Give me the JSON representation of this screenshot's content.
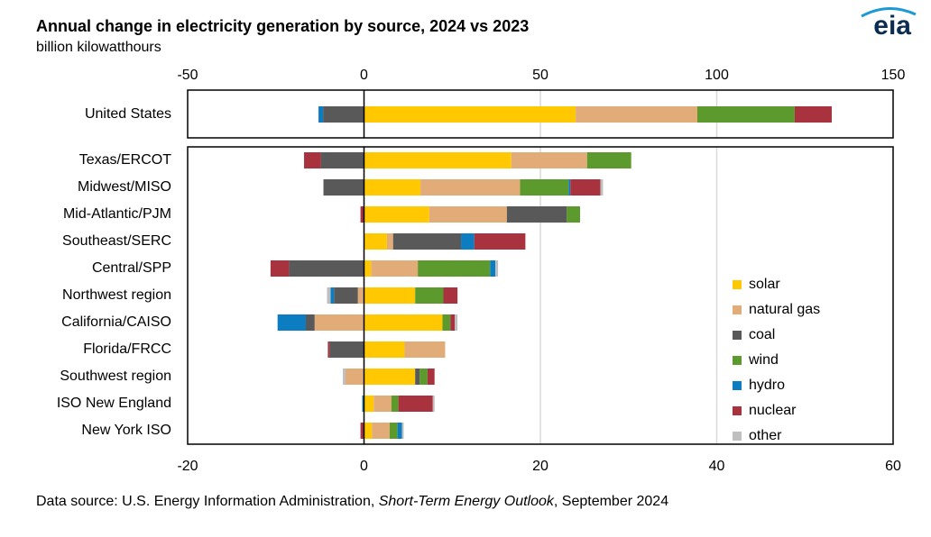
{
  "title": "Annual change in electricity generation by source, 2024 vs 2023",
  "subtitle": "billion kilowatthours",
  "logo": "eia",
  "source": [
    "Data source: U.S. Energy Information Administration, ",
    "Short-Term Energy Outlook",
    ", September 2024"
  ],
  "chart_data": [
    {
      "type": "stacked-barh",
      "categories": [
        "United States"
      ],
      "xlim": [
        -50,
        150
      ],
      "xticks": [
        -50,
        0,
        50,
        100,
        150
      ],
      "grid": true,
      "series": [
        {
          "name": "solar",
          "color": "#ffc800",
          "values": [
            60
          ]
        },
        {
          "name": "natural gas",
          "color": "#e2ac78",
          "values": [
            34.5
          ]
        },
        {
          "name": "coal",
          "color": "#595959",
          "values": [
            -11.6
          ]
        },
        {
          "name": "wind",
          "color": "#5c9a2e",
          "values": [
            27.6
          ]
        },
        {
          "name": "hydro",
          "color": "#0c7dc0",
          "values": [
            -1.3
          ]
        },
        {
          "name": "nuclear",
          "color": "#a8323e",
          "values": [
            10.5
          ]
        },
        {
          "name": "other",
          "color": "#bfbfbf",
          "values": [
            null
          ]
        }
      ]
    },
    {
      "type": "stacked-barh",
      "categories": [
        "Texas/ERCOT",
        "Midwest/MISO",
        "Mid-Atlantic/PJM",
        "Southeast/SERC",
        "Central/SPP",
        "Northwest region",
        "California/CAISO",
        "Florida/FRCC",
        "Southwest region",
        "ISO New England",
        "New York ISO"
      ],
      "xlim": [
        -20,
        60
      ],
      "xticks": [
        -20,
        0,
        20,
        40,
        60
      ],
      "grid": true,
      "legend": "right",
      "series": [
        {
          "name": "solar",
          "color": "#ffc800",
          "values": [
            16.7,
            6.4,
            7.4,
            2.6,
            0.8,
            5.8,
            8.9,
            4.6,
            5.8,
            1.1,
            0.9
          ]
        },
        {
          "name": "natural gas",
          "color": "#e2ac78",
          "values": [
            8.6,
            11.3,
            8.8,
            0.7,
            5.3,
            -0.7,
            -5.6,
            4.6,
            -2.1,
            2.0,
            2.0
          ]
        },
        {
          "name": "coal",
          "color": "#595959",
          "values": [
            -4.9,
            -4.6,
            6.8,
            7.7,
            -8.5,
            -2.7,
            -1.0,
            -3.9,
            0.5,
            null,
            null
          ]
        },
        {
          "name": "wind",
          "color": "#5c9a2e",
          "values": [
            5.0,
            5.5,
            1.5,
            null,
            8.2,
            3.2,
            0.9,
            null,
            0.9,
            0.8,
            0.9
          ]
        },
        {
          "name": "hydro",
          "color": "#0c7dc0",
          "values": [
            null,
            0.2,
            null,
            1.5,
            0.6,
            -0.4,
            -3.2,
            null,
            null,
            -0.2,
            0.5
          ]
        },
        {
          "name": "nuclear",
          "color": "#a8323e",
          "values": [
            -1.9,
            3.4,
            -0.4,
            5.8,
            -2.1,
            1.6,
            0.5,
            -0.2,
            0.8,
            3.9,
            -0.4
          ]
        },
        {
          "name": "other",
          "color": "#bfbfbf",
          "values": [
            null,
            0.3,
            null,
            null,
            0.3,
            -0.4,
            0.3,
            null,
            -0.3,
            0.2,
            0.2
          ]
        }
      ]
    }
  ]
}
